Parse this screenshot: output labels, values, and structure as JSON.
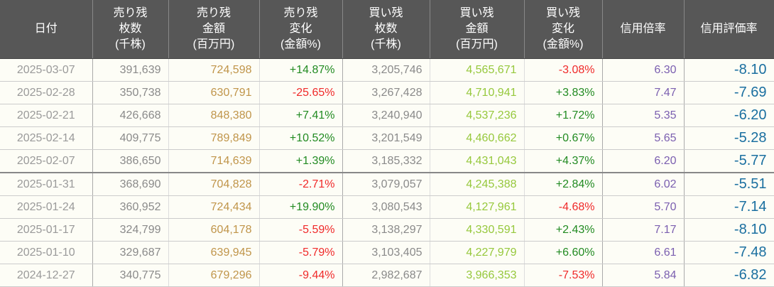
{
  "headers": [
    [
      "日付"
    ],
    [
      "売り残",
      "枚数",
      "(千株)"
    ],
    [
      "売り残",
      "金額",
      "(百万円)"
    ],
    [
      "売り残",
      "変化",
      "(金額%)"
    ],
    [
      "買い残",
      "枚数",
      "(千株)"
    ],
    [
      "買い残",
      "金額",
      "(百万円)"
    ],
    [
      "買い残",
      "変化",
      "(金額%)"
    ],
    [
      "信用倍率"
    ],
    [
      "信用評価率"
    ]
  ],
  "colors": {
    "header_bg": "#575757",
    "positive": "#228b22",
    "negative": "#f02a2a",
    "sell_amount": "#c0954a",
    "buy_amount": "#96c83c",
    "ratio": "#7b5fb0",
    "valuation": "#1a6fa0"
  },
  "rows": [
    [
      "2025-03-07",
      "391,639",
      "724,598",
      "+14.87%",
      "3,205,746",
      "4,565,671",
      "-3.08%",
      "6.30",
      "-8.10"
    ],
    [
      "2025-02-28",
      "350,738",
      "630,791",
      "-25.65%",
      "3,267,428",
      "4,710,941",
      "+3.83%",
      "7.47",
      "-7.69"
    ],
    [
      "2025-02-21",
      "426,668",
      "848,380",
      "+7.41%",
      "3,240,940",
      "4,537,236",
      "+1.72%",
      "5.35",
      "-6.20"
    ],
    [
      "2025-02-14",
      "409,775",
      "789,849",
      "+10.52%",
      "3,201,549",
      "4,460,662",
      "+0.67%",
      "5.65",
      "-5.28"
    ],
    [
      "2025-02-07",
      "386,650",
      "714,639",
      "+1.39%",
      "3,185,332",
      "4,431,043",
      "+4.37%",
      "6.20",
      "-5.77"
    ],
    [
      "2025-01-31",
      "368,690",
      "704,828",
      "-2.71%",
      "3,079,057",
      "4,245,388",
      "+2.84%",
      "6.02",
      "-5.51"
    ],
    [
      "2025-01-24",
      "360,952",
      "724,434",
      "+19.90%",
      "3,080,543",
      "4,127,961",
      "-4.68%",
      "5.70",
      "-7.14"
    ],
    [
      "2025-01-17",
      "324,799",
      "604,178",
      "-5.59%",
      "3,138,297",
      "4,330,591",
      "+2.43%",
      "7.17",
      "-8.10"
    ],
    [
      "2025-01-10",
      "329,687",
      "639,945",
      "-5.79%",
      "3,103,405",
      "4,227,979",
      "+6.60%",
      "6.61",
      "-7.48"
    ],
    [
      "2024-12-27",
      "340,775",
      "679,296",
      "-9.44%",
      "2,982,687",
      "3,966,353",
      "-7.53%",
      "5.84",
      "-6.82"
    ]
  ]
}
